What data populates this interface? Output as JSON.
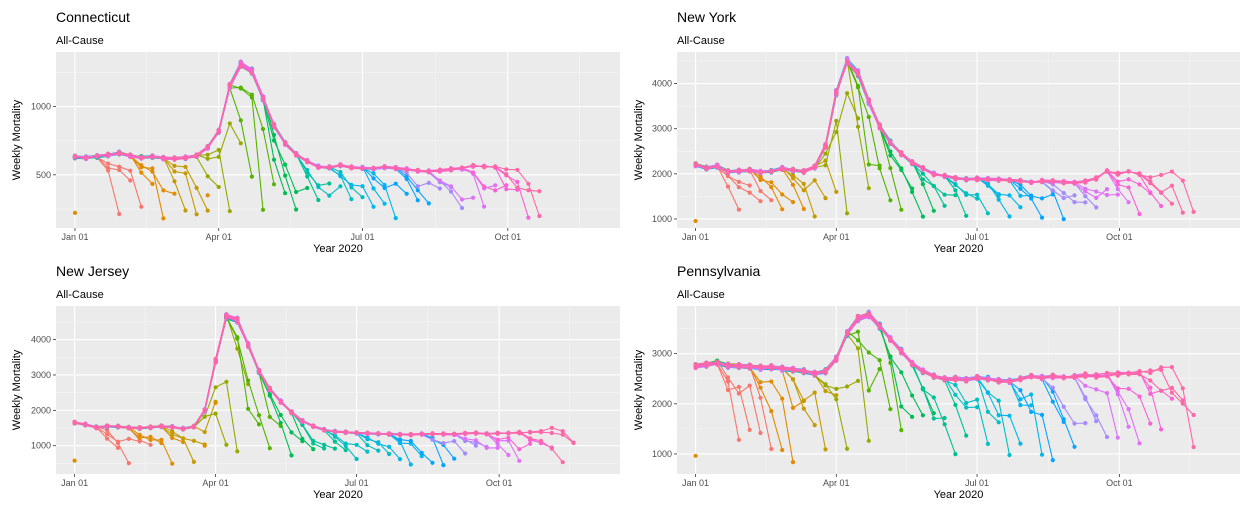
{
  "colors": {
    "panel_bg": "#EBEBEB",
    "grid_major": "#FFFFFF",
    "grid_minor": "#F5F5F5",
    "tick_text": "#4D4D4D",
    "title_text": "#000000",
    "series_palette": [
      "#F8766D",
      "#E08B00",
      "#C49A00",
      "#99A800",
      "#53B400",
      "#00BC56",
      "#00C094",
      "#00BFC4",
      "#00B6EB",
      "#06A4FF",
      "#A58AFF",
      "#DF70F8",
      "#FB61D7",
      "#FF66A8"
    ]
  },
  "chart_data": [
    {
      "type": "line",
      "title": "Connecticut",
      "subtitle": "All-Cause",
      "xlabel": "Year 2020",
      "ylabel": "Weekly Mortality",
      "x_ticks": [
        {
          "label": "Jan 01",
          "day": 0
        },
        {
          "label": "Apr 01",
          "day": 91
        },
        {
          "label": "Jul 01",
          "day": 182
        },
        {
          "label": "Oct 01",
          "day": 274
        }
      ],
      "x_range_days": [
        -12,
        345
      ],
      "y_ticks": [
        500,
        1000
      ],
      "ylim": [
        110,
        1400
      ],
      "legend": "none",
      "grid": true,
      "baseline": {
        "start_day": 0,
        "values": [
          630,
          625,
          635,
          645,
          660,
          640,
          628,
          632,
          622,
          620,
          625,
          640,
          700,
          820,
          1150,
          1310,
          1260,
          1060,
          860,
          730,
          650,
          600,
          560,
          555,
          570,
          555,
          550,
          545,
          555,
          550,
          540,
          530,
          525,
          530,
          540,
          545,
          565,
          560,
          560,
          545,
          530,
          520,
          500
        ]
      },
      "revision_count": 40,
      "early_lag_points": 2
    },
    {
      "type": "line",
      "title": "New York",
      "subtitle": "All-Cause",
      "xlabel": "Year 2020",
      "ylabel": "Weekly Mortality",
      "x_ticks": [
        {
          "label": "Jan 01",
          "day": 0
        },
        {
          "label": "Apr 01",
          "day": 91
        },
        {
          "label": "Jul 01",
          "day": 182
        },
        {
          "label": "Oct 01",
          "day": 274
        }
      ],
      "x_range_days": [
        -12,
        352
      ],
      "y_ticks": [
        1000,
        2000,
        3000,
        4000
      ],
      "ylim": [
        800,
        4700
      ],
      "legend": "none",
      "grid": true,
      "baseline": {
        "start_day": 0,
        "values": [
          2200,
          2130,
          2170,
          2050,
          2060,
          2080,
          2040,
          2060,
          2120,
          2080,
          2050,
          2150,
          2620,
          3800,
          4500,
          4230,
          3600,
          3050,
          2700,
          2450,
          2250,
          2130,
          2000,
          1950,
          1900,
          1880,
          1890,
          1880,
          1870,
          1850,
          1840,
          1820,
          1840,
          1830,
          1810,
          1800,
          1830,
          1900,
          2050,
          2000,
          2060,
          1980,
          1900,
          1950,
          2050,
          2050,
          2100
        ]
      },
      "revision_count": 43,
      "early_lag_points": 1
    },
    {
      "type": "line",
      "title": "New Jersey",
      "subtitle": "All-Cause",
      "xlabel": "Year 2020",
      "ylabel": "Weekly Mortality",
      "x_ticks": [
        {
          "label": "Jan 01",
          "day": 0
        },
        {
          "label": "Apr 01",
          "day": 91
        },
        {
          "label": "Jul 01",
          "day": 182
        },
        {
          "label": "Oct 01",
          "day": 274
        }
      ],
      "x_range_days": [
        -12,
        352
      ],
      "y_ticks": [
        1000,
        2000,
        3000,
        4000
      ],
      "ylim": [
        200,
        4950
      ],
      "legend": "none",
      "grid": true,
      "baseline": {
        "start_day": 0,
        "values": [
          1650,
          1600,
          1520,
          1550,
          1540,
          1510,
          1500,
          1520,
          1550,
          1530,
          1480,
          1540,
          2000,
          3400,
          4650,
          4550,
          3850,
          3100,
          2600,
          2250,
          1950,
          1700,
          1550,
          1450,
          1400,
          1380,
          1360,
          1350,
          1340,
          1330,
          1320,
          1310,
          1330,
          1340,
          1330,
          1320,
          1350,
          1360,
          1340,
          1350,
          1350,
          1370,
          1380,
          1400,
          1500,
          1560,
          1520
        ]
      },
      "revision_count": 44,
      "early_lag_points": 3
    },
    {
      "type": "line",
      "title": "Pennsylvania",
      "subtitle": "All-Cause",
      "xlabel": "Year 2020",
      "ylabel": "Weekly Mortality",
      "x_ticks": [
        {
          "label": "Jan 01",
          "day": 0
        },
        {
          "label": "Apr 01",
          "day": 91
        },
        {
          "label": "Jul 01",
          "day": 182
        },
        {
          "label": "Oct 01",
          "day": 274
        }
      ],
      "x_range_days": [
        -12,
        352
      ],
      "y_ticks": [
        1000,
        2000,
        3000
      ],
      "ylim": [
        600,
        3950
      ],
      "legend": "none",
      "grid": true,
      "baseline": {
        "start_day": 0,
        "values": [
          2750,
          2780,
          2820,
          2760,
          2750,
          2740,
          2720,
          2730,
          2700,
          2680,
          2650,
          2600,
          2650,
          2900,
          3400,
          3700,
          3780,
          3550,
          3300,
          3050,
          2800,
          2650,
          2550,
          2500,
          2500,
          2480,
          2520,
          2500,
          2460,
          2450,
          2500,
          2550,
          2520,
          2550,
          2540,
          2550,
          2570,
          2560,
          2580,
          2600,
          2620,
          2620,
          2650,
          2700,
          2750,
          2800,
          2850
        ]
      },
      "revision_count": 44,
      "early_lag_points": 1
    }
  ]
}
